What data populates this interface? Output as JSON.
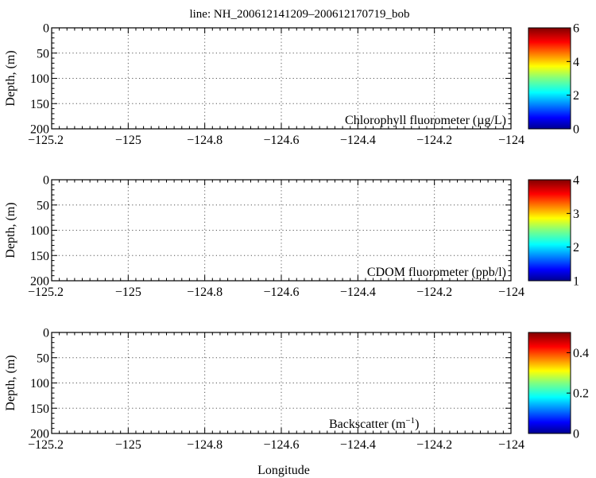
{
  "figure": {
    "title": "line: NH_200612141209–200612170719_bob",
    "xlabel": "Longitude"
  },
  "chart_data": [
    {
      "type": "heatmap",
      "title": "line: NH_200612141209–200612170719_bob",
      "annotation": "Chlorophyll fluorometer (µg/L)",
      "xlabel": "",
      "ylabel": "Depth, (m)",
      "xlim": [
        -125.2,
        -124
      ],
      "ylim": [
        0,
        200
      ],
      "y_reversed": true,
      "x_ticks": [
        "−125.2",
        "−125",
        "−124.8",
        "−124.6",
        "−124.4",
        "−124.2",
        "−124"
      ],
      "y_ticks": [
        "0",
        "50",
        "100",
        "150",
        "200"
      ],
      "grid": true,
      "colorbar": {
        "range": [
          0,
          6
        ],
        "ticks": [
          "0",
          "2",
          "4",
          "6"
        ],
        "colormap": "jet"
      },
      "values": []
    },
    {
      "type": "heatmap",
      "annotation": "CDOM fluorometer (ppb/l)",
      "xlabel": "",
      "ylabel": "Depth, (m)",
      "xlim": [
        -125.2,
        -124
      ],
      "ylim": [
        0,
        200
      ],
      "y_reversed": true,
      "x_ticks": [
        "−125.2",
        "−125",
        "−124.8",
        "−124.6",
        "−124.4",
        "−124.2",
        "−124"
      ],
      "y_ticks": [
        "0",
        "50",
        "100",
        "150",
        "200"
      ],
      "grid": true,
      "colorbar": {
        "range": [
          1,
          4
        ],
        "ticks": [
          "1",
          "2",
          "3",
          "4"
        ],
        "colormap": "jet"
      },
      "values": []
    },
    {
      "type": "heatmap",
      "annotation_base": "Backscatter (m",
      "annotation_sup": "−1",
      "annotation_end": ")",
      "xlabel": "Longitude",
      "ylabel": "Depth, (m)",
      "xlim": [
        -125.2,
        -124
      ],
      "ylim": [
        0,
        200
      ],
      "y_reversed": true,
      "x_ticks": [
        "−125.2",
        "−125",
        "−124.8",
        "−124.6",
        "−124.4",
        "−124.2",
        "−124"
      ],
      "y_ticks": [
        "0",
        "50",
        "100",
        "150",
        "200"
      ],
      "grid": true,
      "colorbar": {
        "range": [
          0,
          0.5
        ],
        "ticks": [
          "0",
          "0.2",
          "0.4"
        ],
        "tick_values": [
          0,
          0.2,
          0.4
        ],
        "colormap": "jet"
      },
      "values": []
    }
  ]
}
